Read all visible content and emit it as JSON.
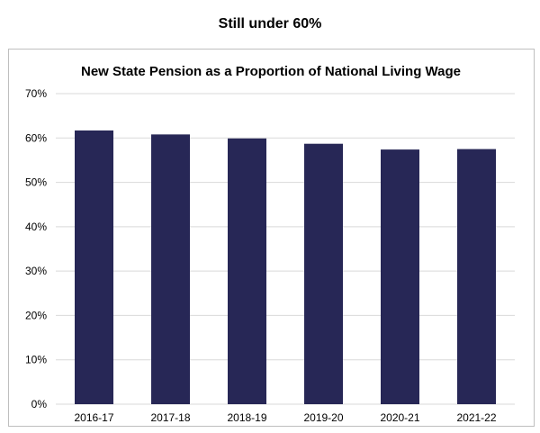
{
  "headline": "Still under 60%",
  "chart_data": {
    "type": "bar",
    "title": "New State Pension as a Proportion of National Living Wage",
    "categories": [
      "2016-17",
      "2017-18",
      "2018-19",
      "2019-20",
      "2020-21",
      "2021-22"
    ],
    "values": [
      61.7,
      60.8,
      59.9,
      58.7,
      57.4,
      57.5
    ],
    "ylim": [
      0,
      70
    ],
    "yticks": [
      0,
      10,
      20,
      30,
      40,
      50,
      60,
      70
    ],
    "ytick_suffix": "%",
    "xlabel": "",
    "ylabel": "",
    "grid": true,
    "legend": "none",
    "bar_color": "#272756",
    "grid_color": "#d9d9d9"
  }
}
